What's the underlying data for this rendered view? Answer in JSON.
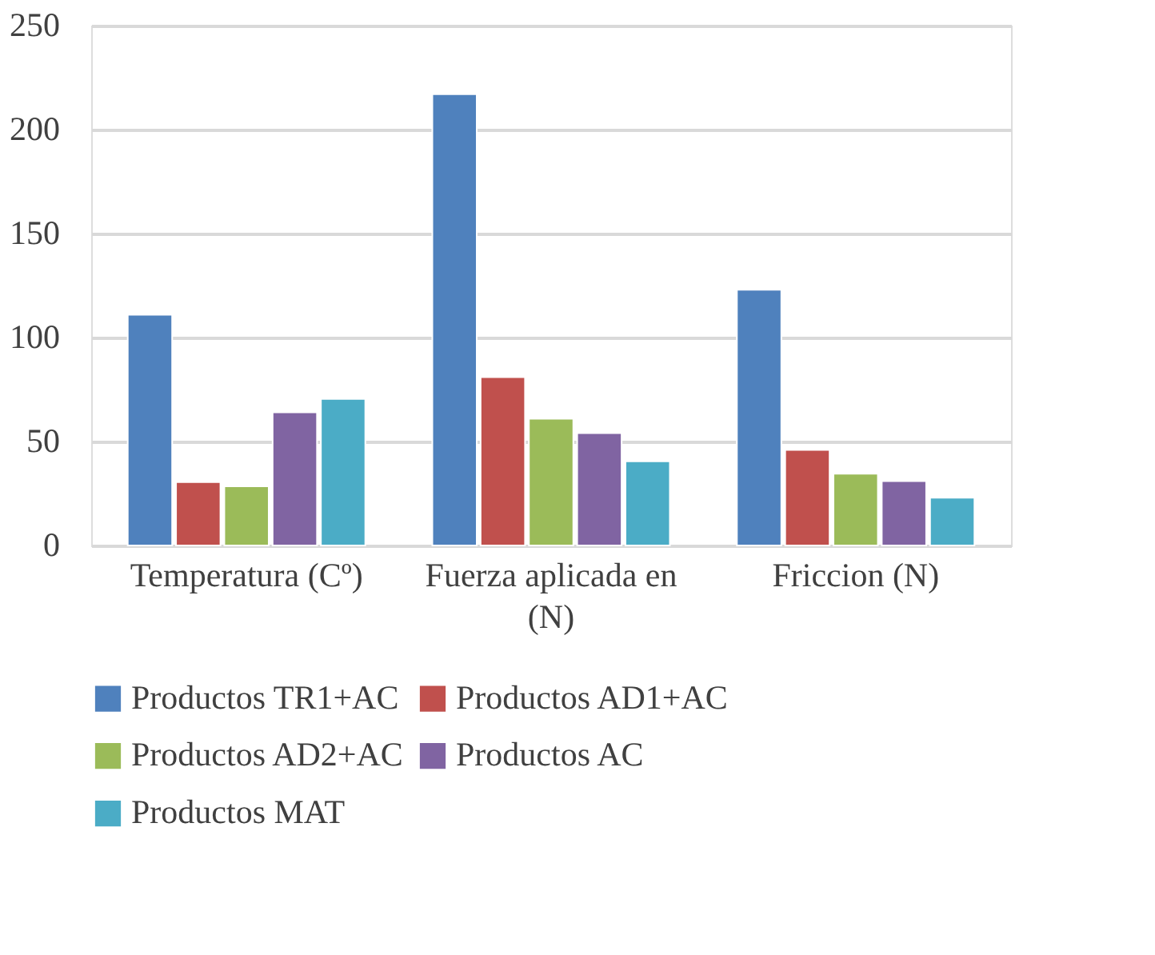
{
  "chart_data": {
    "type": "bar",
    "categories": [
      "Temperatura (Cº)",
      "Fuerza aplicada en (N)",
      "Friccion (N)"
    ],
    "series": [
      {
        "name": "Productos TR1+AC",
        "color": "#4f81bd",
        "values": [
          111,
          217,
          123
        ]
      },
      {
        "name": "Productos AD1+AC",
        "color": "#c0504d",
        "values": [
          30.5,
          81,
          46
        ]
      },
      {
        "name": "Productos AD2+AC",
        "color": "#9bbb59",
        "values": [
          28.5,
          61,
          34.5
        ]
      },
      {
        "name": "Productos AC",
        "color": "#8064a2",
        "values": [
          64,
          54,
          31
        ]
      },
      {
        "name": "Productos MAT",
        "color": "#4bacc6",
        "values": [
          70.5,
          40.5,
          23
        ]
      }
    ],
    "ylim": [
      0,
      250
    ],
    "yticks": [
      0,
      50,
      100,
      150,
      200,
      250
    ],
    "grid": "y",
    "legend": "bottom"
  }
}
